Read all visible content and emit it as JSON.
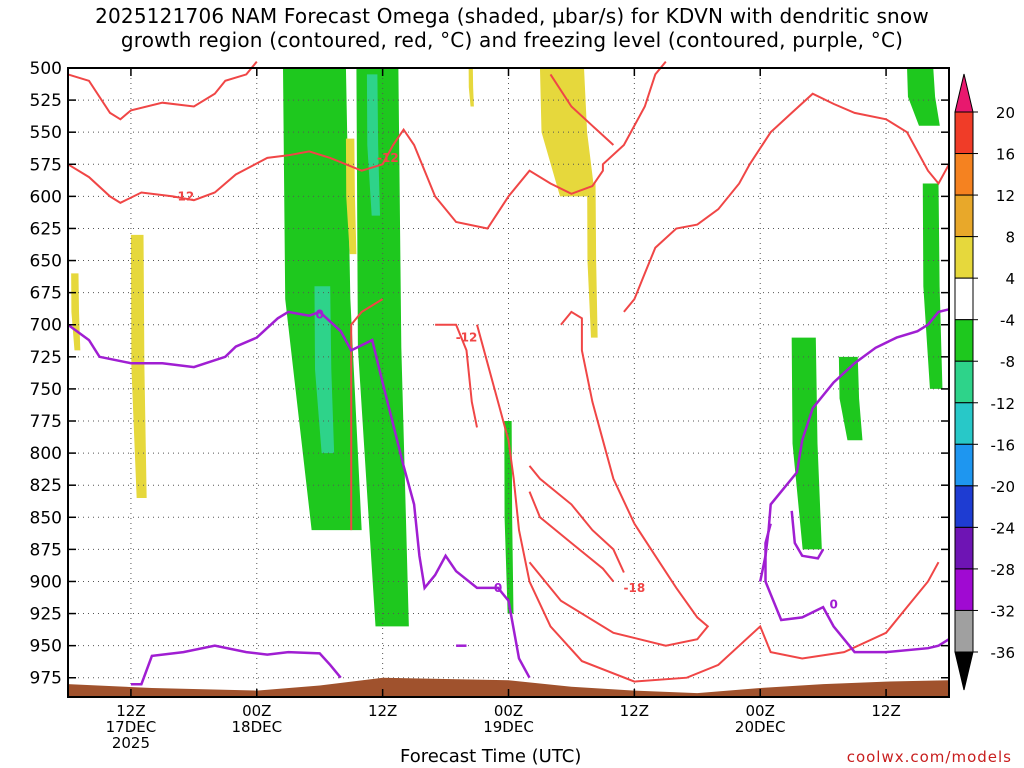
{
  "header": {
    "title_line1": "2025121706 NAM Forecast Omega (shaded, μbar/s) for KDVN with dendritic snow",
    "title_line2": "growth region (contoured, red, °C) and freezing level (contoured, purple, °C)"
  },
  "footer": {
    "watermark": "coolwx.com/models"
  },
  "chart_data": {
    "type": "time-height cross-section",
    "xlabel": "Forecast Time (UTC)",
    "ylabel": "",
    "y_axis": {
      "unit": "mb",
      "reversed": true,
      "ylim": [
        500,
        990
      ],
      "ticks": [
        500,
        525,
        550,
        575,
        600,
        625,
        650,
        675,
        700,
        725,
        750,
        775,
        800,
        825,
        850,
        875,
        900,
        925,
        950,
        975
      ]
    },
    "x_axis": {
      "range_hours": [
        6,
        90
      ],
      "ticks": [
        {
          "hour": 12,
          "lines": [
            "12Z",
            "17DEC",
            "2025"
          ]
        },
        {
          "hour": 24,
          "lines": [
            "00Z",
            "18DEC"
          ]
        },
        {
          "hour": 36,
          "lines": [
            "12Z"
          ]
        },
        {
          "hour": 48,
          "lines": [
            "00Z",
            "19DEC"
          ]
        },
        {
          "hour": 60,
          "lines": [
            "12Z"
          ]
        },
        {
          "hour": 72,
          "lines": [
            "00Z",
            "20DEC"
          ]
        },
        {
          "hour": 84,
          "lines": [
            "12Z"
          ]
        }
      ]
    },
    "grid": true,
    "colorbar": {
      "unit": "μbar/s",
      "labels": [
        "20",
        "16",
        "12",
        "8",
        "4",
        "-4",
        "-8",
        "-12",
        "-16",
        "-20",
        "-24",
        "-28",
        "-32",
        "-36"
      ],
      "colors": [
        "#e8186e",
        "#f03c28",
        "#f58220",
        "#e8a82a",
        "#e6d83c",
        "#ffffff",
        "#1ec81e",
        "#2ed38a",
        "#28c8c8",
        "#1e96f0",
        "#1e3cd2",
        "#6e14b4",
        "#a00ad2",
        "#a0a0a0",
        "#000000"
      ]
    },
    "contours": {
      "dendritic_red": {
        "color": "#f04646",
        "labels": [
          "-12",
          "-12",
          "-12",
          "-18"
        ]
      },
      "freezing_purple": {
        "color": "#a01ed2",
        "labels": [
          "0",
          "0",
          "0"
        ]
      }
    },
    "terrain_color": "#a0522d",
    "omega_shading": [
      {
        "class": "-4 to -8",
        "color": "#1ec81e",
        "time_h": [
          26.5,
          32.5
        ],
        "p_mb": [
          500,
          860
        ]
      },
      {
        "class": "-8 to -12",
        "color": "#2ed38a",
        "time_h": [
          29.5,
          31.0
        ],
        "p_mb": [
          670,
          800
        ]
      },
      {
        "class": "-4 to -8",
        "color": "#1ec81e",
        "time_h": [
          33.5,
          37.5
        ],
        "p_mb": [
          500,
          935
        ]
      },
      {
        "class": "-8 to -12",
        "color": "#2ed38a",
        "time_h": [
          34.5,
          35.5
        ],
        "p_mb": [
          505,
          615
        ]
      },
      {
        "class": "-4 to -8",
        "color": "#1ec81e",
        "time_h": [
          47.6,
          48.3
        ],
        "p_mb": [
          775,
          925
        ]
      },
      {
        "class": "-4 to -8",
        "color": "#1ec81e",
        "time_h": [
          75.0,
          77.3
        ],
        "p_mb": [
          710,
          875
        ]
      },
      {
        "class": "-4 to -8",
        "color": "#1ec81e",
        "time_h": [
          79.5,
          81.3
        ],
        "p_mb": [
          725,
          790
        ]
      },
      {
        "class": "-4 to -8",
        "color": "#1ec81e",
        "time_h": [
          86.0,
          88.5
        ],
        "p_mb": [
          500,
          545
        ]
      },
      {
        "class": "-4 to -8",
        "color": "#1ec81e",
        "time_h": [
          87.5,
          89.0
        ],
        "p_mb": [
          590,
          750
        ]
      },
      {
        "class": "4 to 8",
        "color": "#e6d83c",
        "time_h": [
          12.0,
          13.2
        ],
        "p_mb": [
          630,
          835
        ]
      },
      {
        "class": "4 to 8",
        "color": "#e6d83c",
        "time_h": [
          6.3,
          7.0
        ],
        "p_mb": [
          660,
          720
        ]
      },
      {
        "class": "4 to 8",
        "color": "#e6d83c",
        "time_h": [
          32.5,
          33.3
        ],
        "p_mb": [
          555,
          645
        ]
      },
      {
        "class": "4 to 8",
        "color": "#e6d83c",
        "time_h": [
          51.0,
          55.2
        ],
        "p_mb": [
          500,
          600
        ]
      },
      {
        "class": "4 to 8",
        "color": "#e6d83c",
        "time_h": [
          55.5,
          56.3
        ],
        "p_mb": [
          590,
          710
        ]
      },
      {
        "class": "4 to 8",
        "color": "#e6d83c",
        "time_h": [
          44.2,
          44.6
        ],
        "p_mb": [
          500,
          530
        ]
      }
    ]
  }
}
